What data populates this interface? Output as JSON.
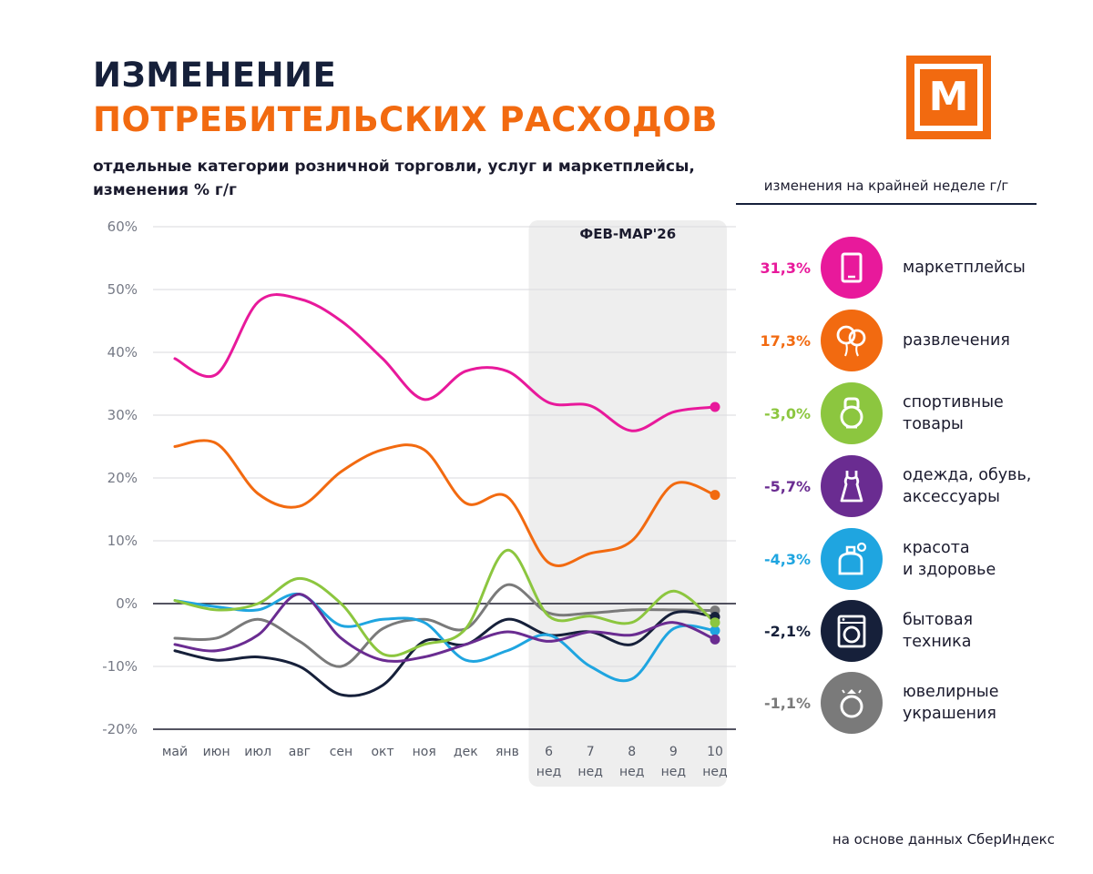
{
  "title": {
    "line1": "ИЗМЕНЕНИЕ",
    "line2": "ПОТРЕБИТЕЛЬСКИХ РАСХОДОВ",
    "subtitle": "отдельные категории розничной торговли, услуг  и маркетплейсы, изменения % г/г"
  },
  "logo": {
    "letter": "М",
    "icon": "brand-m-logo-icon",
    "color": "#f26a10"
  },
  "legend": {
    "header": "изменения на крайней неделе г/г",
    "items": [
      {
        "value": "31,3%",
        "line1": "маркетплейсы",
        "line2": "",
        "color": "#e8199b",
        "icon": "tablet-icon"
      },
      {
        "value": "17,3%",
        "line1": "развлечения",
        "line2": "",
        "color": "#f26a10",
        "icon": "balloons-icon"
      },
      {
        "value": "-3,0%",
        "line1": "спортивные",
        "line2": "товары",
        "color": "#8cc63f",
        "icon": "kettlebell-icon"
      },
      {
        "value": "-5,7%",
        "line1": "одежда, обувь,",
        "line2": "аксессуары",
        "color": "#6a2c91",
        "icon": "dress-icon"
      },
      {
        "value": "-4,3%",
        "line1": "красота",
        "line2": "и здоровье",
        "color": "#1fa5e0",
        "icon": "perfume-icon"
      },
      {
        "value": "-2,1%",
        "line1": "бытовая",
        "line2": "техника",
        "color": "#16203a",
        "icon": "washing-machine-icon"
      },
      {
        "value": "-1,1%",
        "line1": "ювелирные",
        "line2": "украшения",
        "color": "#7a7a7a",
        "icon": "ring-icon"
      }
    ]
  },
  "source": "на основе данных СберИндекс",
  "chart_data": {
    "type": "line",
    "title": "ИЗМЕНЕНИЕ ПОТРЕБИТЕЛЬСКИХ РАСХОДОВ",
    "ylim": [
      -20,
      60
    ],
    "yticks": [
      "60%",
      "50%",
      "40%",
      "30%",
      "20%",
      "10%",
      "0%",
      "-10%",
      "-20%"
    ],
    "ytick_values": [
      60,
      50,
      40,
      30,
      20,
      10,
      0,
      -10,
      -20
    ],
    "categories": [
      "май",
      "июн",
      "июл",
      "авг",
      "сен",
      "окт",
      "ноя",
      "дек",
      "янв",
      "6",
      "7",
      "8",
      "9",
      "10"
    ],
    "category_sublabels": [
      "",
      "",
      "",
      "",
      "",
      "",
      "",
      "",
      "",
      "нед",
      "нед",
      "нед",
      "нед",
      "нед"
    ],
    "highlight": {
      "label": "ФЕВ-МАР'26",
      "from_index": 9,
      "to_index": 13
    },
    "zero_line": true,
    "series": [
      {
        "name": "маркетплейсы",
        "color": "#e8199b",
        "values": [
          39,
          36.5,
          48,
          48.5,
          45,
          39,
          32.5,
          37,
          37,
          32,
          31.5,
          27.5,
          30.5,
          31.3
        ]
      },
      {
        "name": "развлечения",
        "color": "#f26a10",
        "values": [
          25,
          25.5,
          17.5,
          15.5,
          21,
          24.5,
          24.5,
          16,
          17,
          6.5,
          8,
          10,
          19,
          17.3
        ]
      },
      {
        "name": "спортивные товары",
        "color": "#8cc63f",
        "values": [
          0.5,
          -1,
          0,
          4,
          0,
          -8,
          -6.5,
          -4,
          8.5,
          -2,
          -2,
          -3,
          2,
          -3.0
        ]
      },
      {
        "name": "одежда, обувь, аксессуары",
        "color": "#6a2c91",
        "values": [
          -6.5,
          -7.5,
          -5,
          1.5,
          -5.5,
          -9,
          -8.5,
          -6.5,
          -4.5,
          -6,
          -4.5,
          -5,
          -3,
          -5.7
        ]
      },
      {
        "name": "красота и здоровье",
        "color": "#1fa5e0",
        "values": [
          0.5,
          -0.5,
          -1,
          1.5,
          -3.5,
          -2.5,
          -3,
          -9,
          -7.5,
          -5,
          -10,
          -12,
          -4,
          -4.3
        ]
      },
      {
        "name": "бытовая техника",
        "color": "#16203a",
        "values": [
          -7.5,
          -9,
          -8.5,
          -10,
          -14.5,
          -13,
          -6,
          -6.5,
          -2.5,
          -5,
          -4.5,
          -6.5,
          -1.5,
          -2.1
        ]
      },
      {
        "name": "ювелирные украшения",
        "color": "#7a7a7a",
        "values": [
          -5.5,
          -5.5,
          -2.5,
          -6,
          -10,
          -4,
          -2.5,
          -4,
          3,
          -1.5,
          -1.5,
          -1,
          -1,
          -1.1
        ]
      }
    ]
  }
}
